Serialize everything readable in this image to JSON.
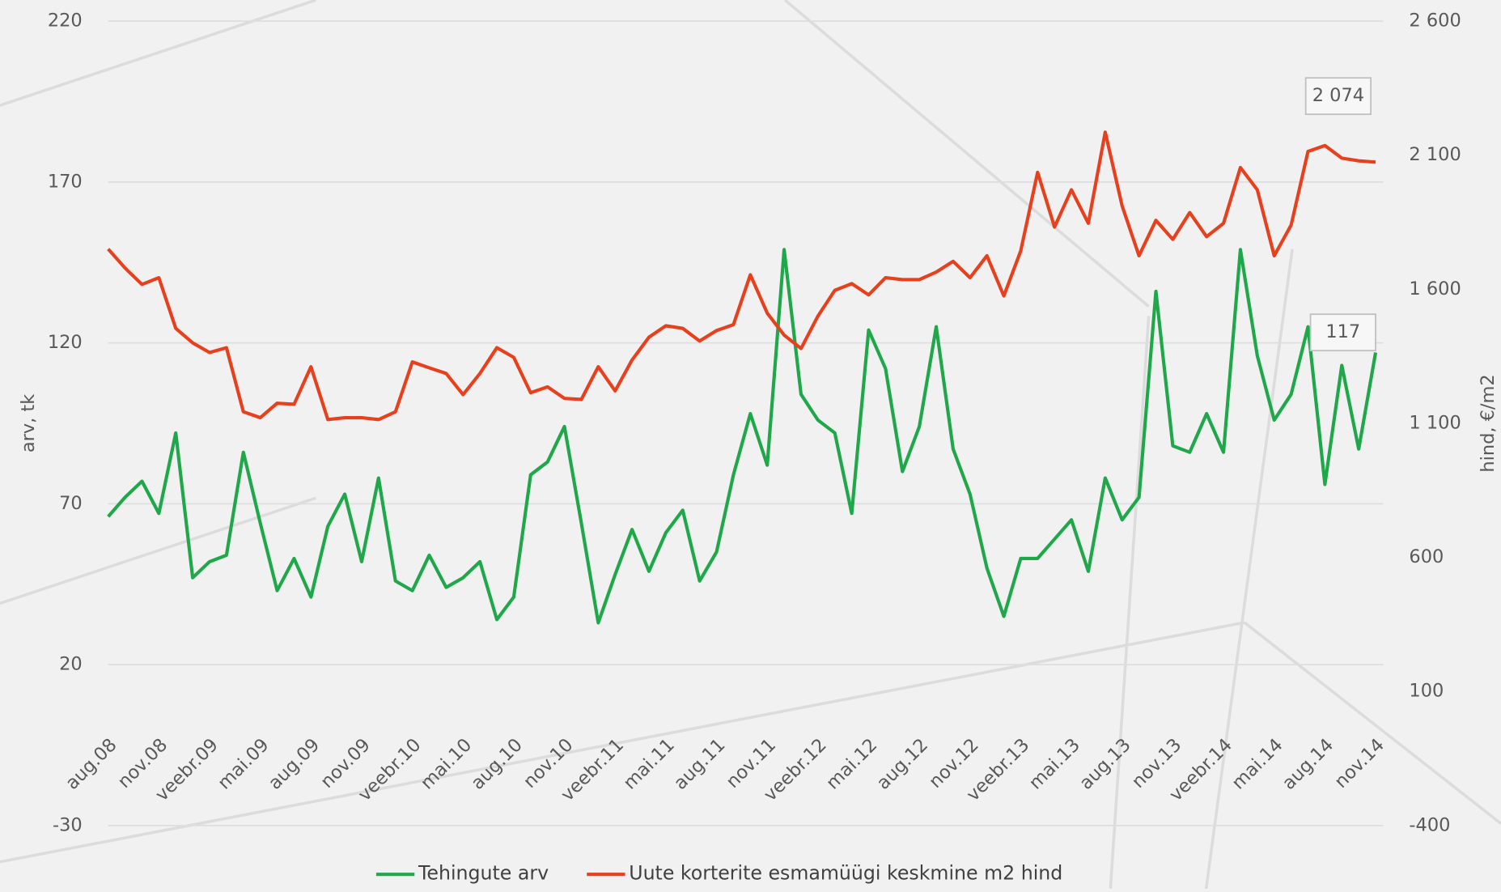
{
  "chart_data": {
    "type": "line",
    "y_label": "arv, tk",
    "y2_label": "hind, €/m2",
    "categories": [
      "aug.08",
      null,
      null,
      "nov.08",
      null,
      null,
      "veebr.09",
      null,
      null,
      "mai.09",
      null,
      null,
      "aug.09",
      null,
      null,
      "nov.09",
      null,
      null,
      "veebr.10",
      null,
      null,
      "mai.10",
      null,
      null,
      "aug.10",
      null,
      null,
      "nov.10",
      null,
      null,
      "veebr.11",
      null,
      null,
      "mai.11",
      null,
      null,
      "aug.11",
      null,
      null,
      "nov.11",
      null,
      null,
      "veebr.12",
      null,
      null,
      "mai.12",
      null,
      null,
      "aug.12",
      null,
      null,
      "nov.12",
      null,
      null,
      "veebr.13",
      null,
      null,
      "mai.13",
      null,
      null,
      "aug.13",
      null,
      null,
      "nov.13",
      null,
      null,
      "veebr.14",
      null,
      null,
      "mai.14",
      null,
      null,
      "aug.14",
      null,
      null,
      "nov.14"
    ],
    "series": [
      {
        "name": "Tehingute arv",
        "color": "#1fa84a",
        "axis": "y",
        "values": [
          66,
          72,
          77,
          67,
          92,
          47,
          52,
          54,
          86,
          64,
          43,
          53,
          41,
          63,
          73,
          52,
          78,
          46,
          43,
          54,
          44,
          47,
          52,
          34,
          41,
          79,
          83,
          94,
          64,
          33,
          48,
          62,
          49,
          61,
          68,
          46,
          55,
          79,
          98,
          82,
          149,
          104,
          96,
          92,
          67,
          124,
          112,
          80,
          94,
          125,
          87,
          73,
          50,
          35,
          53,
          53,
          59,
          65,
          49,
          78,
          65,
          72,
          136,
          88,
          86,
          98,
          86,
          149,
          116,
          96,
          104,
          125,
          76,
          113,
          87,
          117
        ]
      },
      {
        "name": "Uute korterite esmamüügi keskmine m2 hind",
        "color": "#e8401c",
        "axis": "y2",
        "values": [
          1750,
          1679,
          1618,
          1643,
          1454,
          1400,
          1364,
          1382,
          1143,
          1121,
          1175,
          1171,
          1311,
          1114,
          1121,
          1121,
          1114,
          1143,
          1329,
          1307,
          1286,
          1207,
          1286,
          1382,
          1346,
          1214,
          1236,
          1193,
          1189,
          1311,
          1221,
          1336,
          1421,
          1464,
          1454,
          1407,
          1446,
          1468,
          1654,
          1511,
          1429,
          1379,
          1500,
          1596,
          1621,
          1579,
          1643,
          1636,
          1636,
          1664,
          1704,
          1643,
          1725,
          1575,
          1743,
          2036,
          1832,
          1971,
          1846,
          2186,
          1911,
          1725,
          1857,
          1786,
          1886,
          1796,
          1846,
          2054,
          1971,
          1725,
          1839,
          2114,
          2136,
          2089,
          2079,
          2074
        ],
        "value_labels": [
          null,
          null,
          null,
          null,
          null,
          null,
          null,
          null,
          null,
          null,
          null,
          null,
          null,
          null,
          null,
          null,
          null,
          null,
          null,
          null,
          null,
          null,
          null,
          null,
          null,
          null,
          null,
          null,
          null,
          null,
          null,
          null,
          null,
          null,
          null,
          null,
          null,
          null,
          null,
          null,
          null,
          null,
          null,
          null,
          null,
          null,
          null,
          null,
          null,
          null,
          null,
          null,
          null,
          null,
          null,
          null,
          null,
          null,
          null,
          null,
          null,
          null,
          null,
          null,
          null,
          null,
          null,
          null,
          null,
          null,
          null,
          null,
          null,
          null,
          null,
          "2 074"
        ]
      }
    ],
    "ylim": [
      -30,
      220
    ],
    "yticks": [
      -30,
      20,
      70,
      120,
      170,
      220
    ],
    "y2lim": [
      -400,
      2600
    ],
    "y2ticks": [
      {
        "value": -400,
        "label": "-400"
      },
      100,
      600,
      {
        "value": 1100,
        "label": "1 100"
      },
      {
        "value": 1600,
        "label": "1 600"
      },
      {
        "value": 2100,
        "label": "2 100"
      },
      {
        "value": 2600,
        "label": "2 600"
      }
    ],
    "grid": true,
    "legend": "bottom"
  }
}
